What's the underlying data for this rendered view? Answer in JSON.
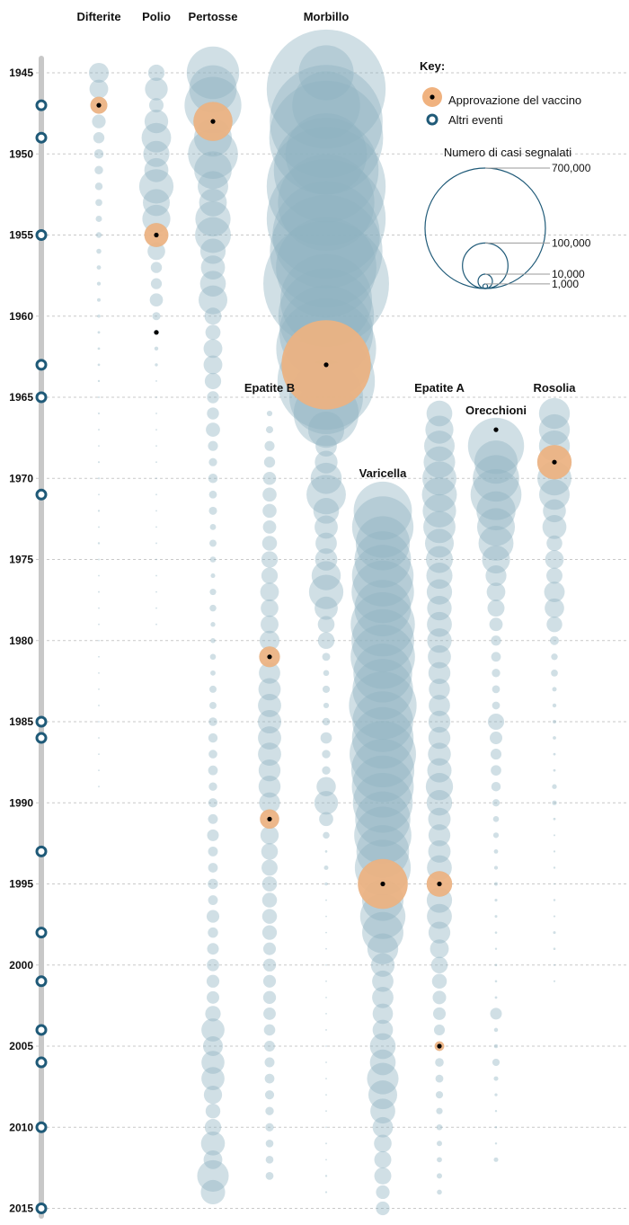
{
  "chart_data": {
    "type": "bubble-timeline",
    "title": "",
    "colors": {
      "cases": "#8fb3c2",
      "cases_opacity": 0.42,
      "vaccine": "#f0b27f",
      "event": "#1f5a78",
      "axis": "#c8c8c8",
      "grid": "#c9c9c9",
      "dot": "#000000"
    },
    "years": {
      "start": 1945,
      "end": 2014,
      "labels": [
        1945,
        1950,
        1955,
        1960,
        1965,
        1970,
        1975,
        1980,
        1985,
        1990,
        1995,
        2000,
        2005,
        2010,
        2015
      ]
    },
    "other_events": [
      1947,
      1949,
      1955,
      1963,
      1965,
      1971,
      1985,
      1986,
      1993,
      1998,
      2001,
      2004,
      2006,
      2010,
      2015
    ],
    "legend": {
      "title": "Key:",
      "vaccine_label": "Approvazione del vaccino",
      "event_label": "Altri eventi",
      "size_title": "Numero di casi segnalati",
      "size_values": [
        {
          "value": 700000,
          "label": "700,000"
        },
        {
          "value": 100000,
          "label": "100,000"
        },
        {
          "value": 10000,
          "label": "10,000"
        },
        {
          "value": 1000,
          "label": "1,000"
        }
      ]
    },
    "series": [
      {
        "name": "Difterite",
        "start_year": 1945,
        "vaccine_years": [
          1947
        ],
        "values": [
          19000,
          17000,
          14000,
          9000,
          6000,
          4300,
          3500,
          2800,
          2300,
          1900,
          1600,
          1200,
          900,
          700,
          600,
          500,
          320,
          300,
          280,
          230,
          160,
          180,
          130,
          110,
          160,
          180,
          130,
          200,
          140,
          230,
          140,
          120,
          140,
          90,
          70,
          60,
          30,
          20,
          10,
          1,
          5,
          3,
          2,
          1,
          2
        ]
      },
      {
        "name": "Polio",
        "start_year": 1945,
        "vaccine_years": [
          1955
        ],
        "events_years": [
          1961
        ],
        "values": [
          13000,
          25000,
          10000,
          27000,
          42000,
          33000,
          28000,
          57000,
          35000,
          38000,
          28000,
          15000,
          6000,
          5800,
          8400,
          3200,
          1300,
          760,
          450,
          120,
          70,
          110,
          40,
          50,
          20,
          30,
          20,
          30,
          10,
          10,
          10,
          10,
          10,
          10,
          10
        ]
      },
      {
        "name": "Pertosse",
        "start_year": 1945,
        "vaccine_years": [
          1948
        ],
        "values": [
          133000,
          109000,
          156000,
          74000,
          69000,
          120000,
          68000,
          45000,
          37000,
          60000,
          62000,
          31000,
          28000,
          32000,
          40000,
          14000,
          11000,
          17000,
          17000,
          13000,
          7000,
          7000,
          9700,
          4800,
          3300,
          4300,
          3000,
          3200,
          1800,
          2400,
          1700,
          1000,
          2000,
          2200,
          1100,
          1200,
          1700,
          1300,
          2500,
          2400,
          3600,
          4200,
          3600,
          4500,
          3400,
          4100,
          4600,
          6600,
          4600,
          4500,
          5100,
          4600,
          7800,
          5100,
          6600,
          7300,
          7900,
          7600,
          11600,
          25800,
          18900,
          25600,
          25800,
          16000,
          10500,
          13200,
          27500,
          16900,
          48000,
          28600
        ]
      },
      {
        "name": "Morbillo",
        "start_year": 1945,
        "vaccine_years": [
          1963
        ],
        "values": [
          146000,
          683000,
          222000,
          616000,
          626000,
          319000,
          530000,
          683000,
          449000,
          683000,
          555000,
          612000,
          487000,
          763000,
          406000,
          442000,
          424000,
          482000,
          385000,
          458000,
          262000,
          204000,
          63000,
          22000,
          25000,
          47000,
          75000,
          32000,
          26000,
          22000,
          24000,
          41000,
          57000,
          26000,
          13500,
          13500,
          3100,
          1700,
          2600,
          1500,
          2800,
          6300,
          3400,
          3400,
          18000,
          27000,
          9600,
          2200,
          280,
          960,
          500,
          140,
          100,
          100,
          100,
          86,
          120,
          40,
          110,
          55,
          37,
          56,
          66,
          43,
          55,
          71,
          140,
          63,
          220,
          187
        ]
      },
      {
        "name": "Epatite B",
        "start_year": 1966,
        "vaccine_years": [
          1981,
          1991
        ],
        "values": [
          1500,
          2500,
          4800,
          5900,
          8300,
          9500,
          9400,
          8500,
          10600,
          13100,
          13000,
          16800,
          15000,
          15500,
          19000,
          21000,
          22000,
          24000,
          26000,
          26600,
          26100,
          25900,
          23200,
          23400,
          21100,
          18000,
          16100,
          13400,
          12500,
          10800,
          10600,
          10600,
          10300,
          7700,
          8000,
          7800,
          8000,
          7500,
          6200,
          5500,
          4700,
          4500,
          4000,
          3400,
          3400,
          2900,
          2900,
          3000
        ]
      },
      {
        "name": "Varicella",
        "start_year": 1972,
        "vaccine_years": [
          1995
        ],
        "values": [
          164000,
          182000,
          141000,
          154000,
          183000,
          188000,
          154000,
          199000,
          190000,
          200000,
          167000,
          177000,
          221000,
          178000,
          183000,
          213000,
          192000,
          185000,
          173000,
          147000,
          158000,
          134000,
          151000,
          120000,
          83000,
          99000,
          82000,
          46000,
          27000,
          22000,
          22000,
          20000,
          20000,
          32000,
          32000,
          48000,
          40000,
          30000,
          20000,
          15000,
          14000,
          14000,
          9000,
          9000
        ]
      },
      {
        "name": "Epatite A",
        "start_year": 1966,
        "vaccine_years": [
          1995,
          2005
        ],
        "values": [
          32000,
          38000,
          45000,
          48000,
          56000,
          59000,
          54000,
          50000,
          40000,
          35000,
          33000,
          31000,
          29000,
          30000,
          29000,
          25800,
          23400,
          21500,
          22000,
          23200,
          23400,
          25300,
          28500,
          35800,
          31400,
          24400,
          23100,
          24200,
          29800,
          31600,
          31000,
          30000,
          23000,
          17000,
          13400,
          10600,
          8800,
          7700,
          5700,
          4500,
          3600,
          3000,
          2600,
          2000,
          1700,
          1400,
          1300,
          1400,
          1200
        ]
      },
      {
        "name": "Orecchioni",
        "start_year": 1968,
        "vaccine_years": [],
        "events_years": [
          1967
        ],
        "values": [
          152000,
          90000,
          104000,
          125000,
          74000,
          69000,
          59000,
          38000,
          21000,
          16800,
          14000,
          8600,
          4900,
          4500,
          3400,
          3000,
          3000,
          12800,
          7700,
          5700,
          5300,
          4300,
          2600,
          1700,
          1500,
          900,
          700,
          680,
          390,
          350,
          270,
          230,
          270,
          260,
          310,
          6600,
          800,
          800,
          2600,
          1000,
          400,
          230,
          230,
          230,
          1000
        ]
      },
      {
        "name": "Rosolia",
        "start_year": 1966,
        "vaccine_years": [
          1969
        ],
        "values": [
          46000,
          46000,
          46000,
          57000,
          56000,
          45000,
          25500,
          27800,
          11900,
          16700,
          12500,
          20400,
          18300,
          11800,
          3900,
          2100,
          2300,
          970,
          750,
          630,
          550,
          310,
          310,
          1100,
          1100,
          300,
          160,
          190,
          230,
          130,
          240,
          180,
          360,
          260,
          140,
          180
        ]
      }
    ]
  }
}
